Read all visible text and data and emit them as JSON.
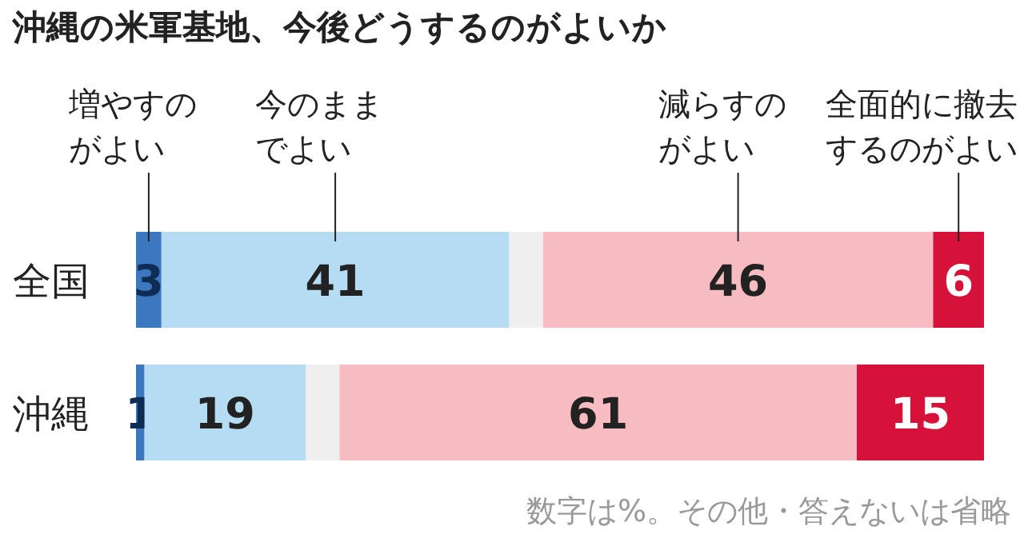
{
  "chart_data": {
    "type": "bar",
    "orientation": "horizontal",
    "stacked": true,
    "title": "沖縄の米軍基地、今後どうするのがよいか",
    "categories": [
      "全国",
      "沖縄"
    ],
    "series": [
      {
        "name": "増やすのがよい",
        "color": "#3b78bf",
        "values": [
          3,
          1
        ],
        "value_labels": [
          "3",
          "1"
        ]
      },
      {
        "name": "今のままでよい",
        "color": "#b5dcf3",
        "values": [
          41,
          19
        ],
        "value_labels": [
          "41",
          "19"
        ]
      },
      {
        "color": "#efefef",
        "values": [
          4,
          4
        ],
        "value_labels": [
          null,
          null
        ]
      },
      {
        "name": "減らすのがよい",
        "color": "#f7bcc1",
        "values": [
          46,
          61
        ],
        "value_labels": [
          "46",
          "61"
        ]
      },
      {
        "name": "全面的に撤去するのがよい",
        "color": "#d6123a",
        "values": [
          6,
          15
        ],
        "value_labels": [
          "6",
          "15"
        ]
      }
    ],
    "xlim": [
      0,
      100
    ],
    "tick_labels": "y",
    "legend": "top",
    "annotations": [
      "数字は%。その他・答えないは省略"
    ]
  }
}
